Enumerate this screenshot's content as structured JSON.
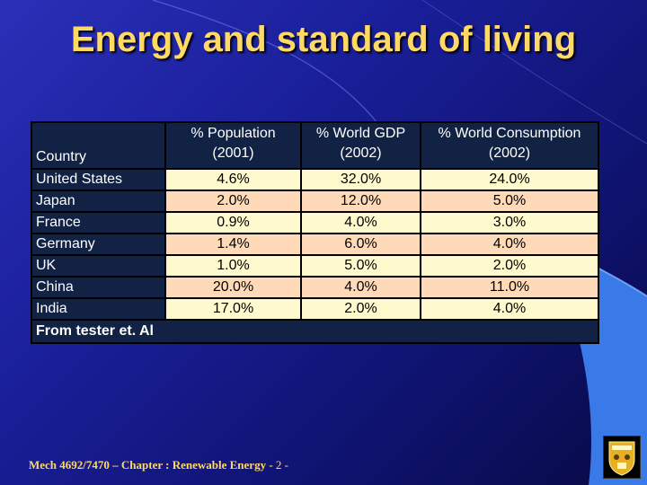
{
  "slide": {
    "title": "Energy and standard of living",
    "footer_text": "Mech 4692/7470 – Chapter : Renewable Energy - ",
    "page_number": "2 -",
    "colors": {
      "title": "#ffd966",
      "header_bg": "#112244",
      "row_light": "#fffacd",
      "row_peach": "#ffdab9"
    }
  },
  "table": {
    "headers": {
      "country": "Country",
      "population_l1": "% Population",
      "population_l2": "(2001)",
      "gdp_l1": "% World GDP",
      "gdp_l2": "(2002)",
      "consumption_l1": "% World Consumption",
      "consumption_l2": "(2002)"
    },
    "rows": [
      {
        "country": "United States",
        "population": "4.6%",
        "gdp": "32.0%",
        "consumption": "24.0%"
      },
      {
        "country": "Japan",
        "population": "2.0%",
        "gdp": "12.0%",
        "consumption": "5.0%"
      },
      {
        "country": "France",
        "population": "0.9%",
        "gdp": "4.0%",
        "consumption": "3.0%"
      },
      {
        "country": "Germany",
        "population": "1.4%",
        "gdp": "6.0%",
        "consumption": "4.0%"
      },
      {
        "country": "UK",
        "population": "1.0%",
        "gdp": "5.0%",
        "consumption": "2.0%"
      },
      {
        "country": "China",
        "population": "20.0%",
        "gdp": "4.0%",
        "consumption": "11.0%"
      },
      {
        "country": "India",
        "population": "17.0%",
        "gdp": "2.0%",
        "consumption": "4.0%"
      }
    ],
    "source": "From tester et. Al"
  },
  "logo": {
    "icon": "university-crest-icon"
  }
}
